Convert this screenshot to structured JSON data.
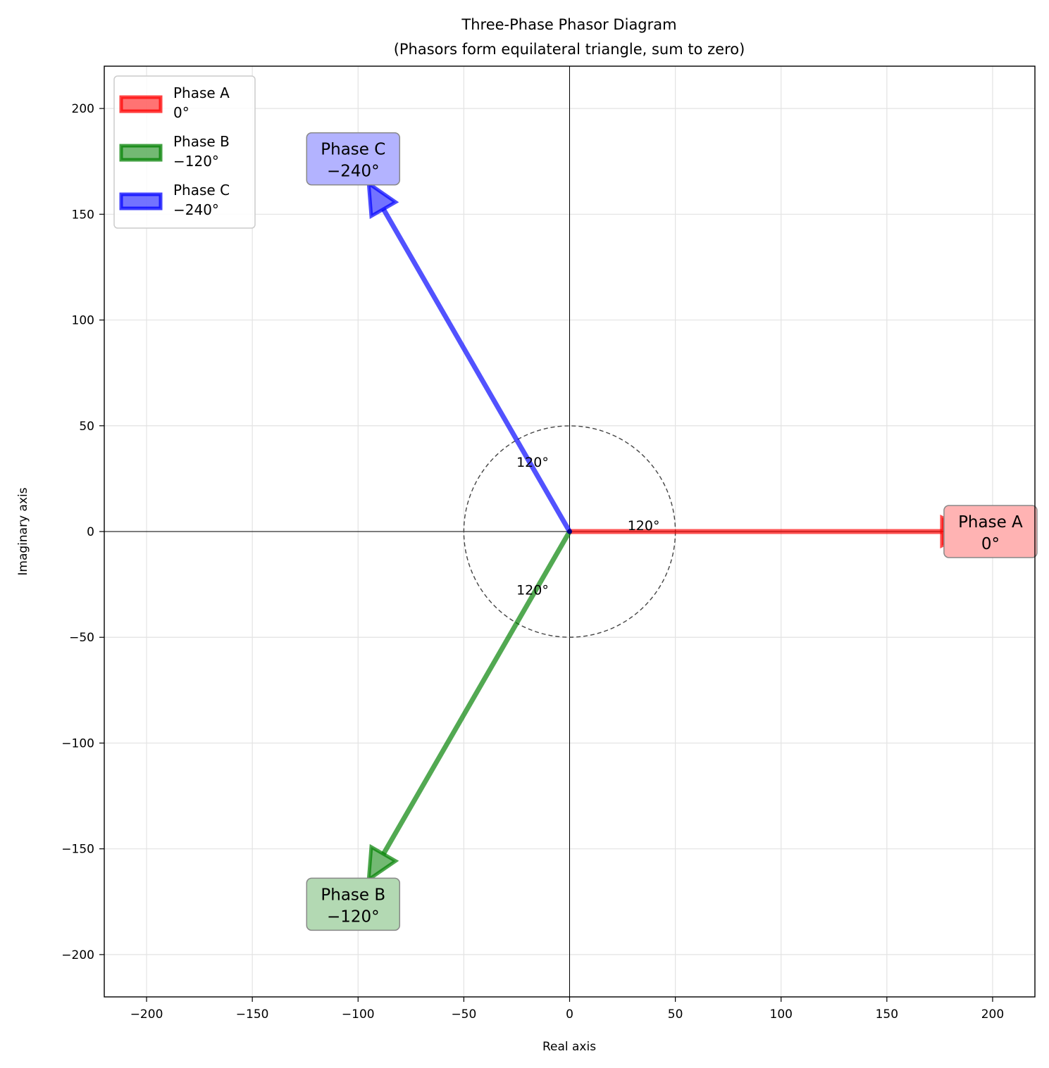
{
  "chart_data": {
    "type": "phasor",
    "title": "Three-Phase Phasor Diagram",
    "subtitle": "(Phasors form equilateral triangle, sum to zero)",
    "xlabel": "Real axis",
    "ylabel": "Imaginary axis",
    "xlim": [
      -220,
      220
    ],
    "ylim": [
      -220,
      220
    ],
    "xticks": [
      -200,
      -150,
      -100,
      -50,
      0,
      50,
      100,
      150,
      200
    ],
    "yticks": [
      -200,
      -150,
      -100,
      -50,
      0,
      50,
      100,
      150,
      200
    ],
    "xtick_labels": [
      "−200",
      "−150",
      "−100",
      "−50",
      "0",
      "50",
      "100",
      "150",
      "200"
    ],
    "ytick_labels": [
      "−200",
      "−150",
      "−100",
      "−50",
      "0",
      "50",
      "100",
      "150",
      "200"
    ],
    "grid": true,
    "legend_position": "top-left",
    "phasors": [
      {
        "name": "Phase A",
        "angle_label": "0°",
        "magnitude": 190,
        "angle_deg": 0,
        "color": "#ff0000",
        "label_bg": "#ffb3b3"
      },
      {
        "name": "Phase B",
        "angle_label": "−120°",
        "magnitude": 190,
        "angle_deg": -120,
        "color": "#008000",
        "label_bg": "#b3d9b3"
      },
      {
        "name": "Phase C",
        "angle_label": "−240°",
        "magnitude": 190,
        "angle_deg": -240,
        "color": "#0000ff",
        "label_bg": "#b3b3ff"
      }
    ],
    "reference_circle_radius": 50,
    "angle_annotations": [
      {
        "text": "120°",
        "x": 35,
        "y": 3
      },
      {
        "text": "120°",
        "x": -17.5,
        "y": 33
      },
      {
        "text": "120°",
        "x": -17.5,
        "y": -27.5
      }
    ]
  }
}
